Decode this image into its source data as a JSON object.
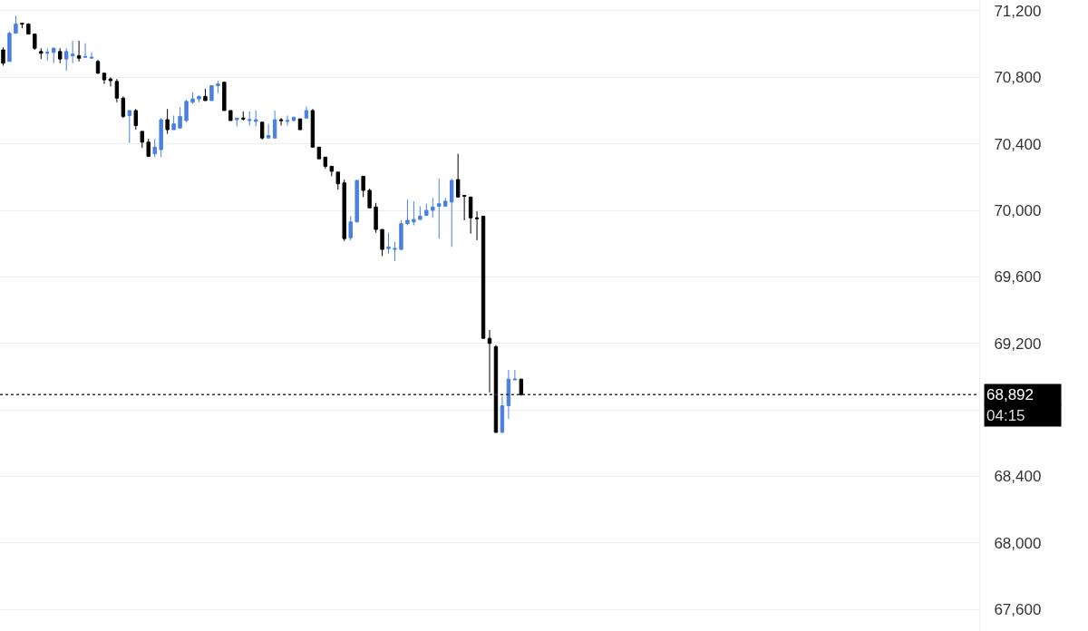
{
  "chart_data": {
    "type": "candlestick",
    "categories": [
      null,
      null,
      null,
      null,
      null,
      null,
      null,
      null,
      null,
      null,
      null,
      null,
      null,
      null,
      null,
      null,
      null,
      null,
      null,
      null,
      null,
      null,
      null,
      null,
      null,
      null,
      null,
      null,
      null,
      null,
      null,
      null,
      null,
      null,
      null,
      null,
      null,
      null,
      null,
      null,
      null,
      null,
      null,
      null,
      null,
      null,
      null,
      null,
      null,
      null,
      null,
      null,
      null,
      null,
      null,
      null,
      null,
      null,
      null,
      null,
      null,
      null,
      null,
      null,
      null,
      null,
      null,
      null,
      null,
      null,
      null,
      null,
      null,
      null,
      null,
      null,
      null,
      null,
      null,
      null,
      null,
      null,
      null,
      null,
      null,
      null,
      null,
      null,
      null,
      null,
      null,
      null,
      null,
      null,
      null,
      null,
      null,
      null,
      null,
      null,
      null,
      null,
      null,
      null,
      null,
      null,
      null,
      null,
      null,
      null,
      null,
      null,
      null,
      null,
      null,
      null,
      null,
      null,
      null,
      null,
      null,
      null,
      null,
      null,
      null,
      null,
      null,
      null,
      null,
      null,
      null,
      null,
      null,
      null,
      null,
      null,
      null,
      null,
      null,
      null,
      null,
      null,
      null,
      null,
      null,
      null,
      null,
      null,
      null,
      null,
      null,
      null,
      null,
      null,
      null
    ],
    "ohlc": [
      [
        70965,
        70980,
        70870,
        70885
      ],
      [
        70895,
        71075,
        70895,
        71065
      ],
      [
        71065,
        71170,
        71065,
        71120
      ],
      [
        71125,
        71125,
        71095,
        71120
      ],
      [
        71120,
        71125,
        71060,
        71060
      ],
      [
        71060,
        71060,
        70965,
        70975
      ],
      [
        70955,
        70975,
        70910,
        70945
      ],
      [
        70945,
        70975,
        70900,
        70950
      ],
      [
        70950,
        70980,
        70885,
        70975
      ],
      [
        70955,
        70975,
        70885,
        70910
      ],
      [
        70910,
        70975,
        70840,
        70955
      ],
      [
        70930,
        71020,
        70885,
        70940
      ],
      [
        70930,
        71020,
        70895,
        70915
      ],
      [
        70920,
        71005,
        70920,
        70925
      ],
      [
        70915,
        70950,
        70915,
        70920
      ],
      [
        70895,
        70905,
        70820,
        70825
      ],
      [
        70825,
        70825,
        70760,
        70785
      ],
      [
        70790,
        70800,
        70745,
        70780
      ],
      [
        70775,
        70790,
        70650,
        70675
      ],
      [
        70675,
        70685,
        70555,
        70565
      ],
      [
        70570,
        70600,
        70405,
        70600
      ],
      [
        70600,
        70610,
        70485,
        70510
      ],
      [
        70475,
        70475,
        70375,
        70410
      ],
      [
        70410,
        70430,
        70320,
        70325
      ],
      [
        70340,
        70430,
        70320,
        70380
      ],
      [
        70365,
        70555,
        70320,
        70545
      ],
      [
        70545,
        70610,
        70460,
        70485
      ],
      [
        70485,
        70570,
        70485,
        70520
      ],
      [
        70495,
        70620,
        70495,
        70565
      ],
      [
        70540,
        70665,
        70530,
        70655
      ],
      [
        70650,
        70710,
        70640,
        70670
      ],
      [
        70670,
        70690,
        70650,
        70685
      ],
      [
        70685,
        70730,
        70660,
        70660
      ],
      [
        70660,
        70750,
        70660,
        70750
      ],
      [
        70750,
        70780,
        70705,
        70760
      ],
      [
        70770,
        70775,
        70600,
        70600
      ],
      [
        70600,
        70600,
        70540,
        70540
      ],
      [
        70545,
        70555,
        70505,
        70555
      ],
      [
        70555,
        70595,
        70540,
        70550
      ],
      [
        70540,
        70595,
        70510,
        70545
      ],
      [
        70535,
        70600,
        70505,
        70545
      ],
      [
        70530,
        70530,
        70425,
        70435
      ],
      [
        70435,
        70520,
        70435,
        70450
      ],
      [
        70435,
        70600,
        70430,
        70545
      ],
      [
        70545,
        70555,
        70510,
        70540
      ],
      [
        70535,
        70570,
        70510,
        70540
      ],
      [
        70540,
        70560,
        70535,
        70560
      ],
      [
        70550,
        70550,
        70485,
        70485
      ],
      [
        70555,
        70625,
        70550,
        70600
      ],
      [
        70600,
        70610,
        70380,
        70380
      ],
      [
        70380,
        70380,
        70310,
        70310
      ],
      [
        70320,
        70320,
        70250,
        70265
      ],
      [
        70265,
        70265,
        70205,
        70235
      ],
      [
        70230,
        70230,
        70125,
        70160
      ],
      [
        70165,
        70185,
        69815,
        69830
      ],
      [
        69835,
        69965,
        69820,
        69930
      ],
      [
        69930,
        70180,
        69930,
        70180
      ],
      [
        70205,
        70205,
        70080,
        70120
      ],
      [
        70120,
        70130,
        70015,
        70015
      ],
      [
        70020,
        70045,
        69865,
        69885
      ],
      [
        69885,
        69885,
        69725,
        69765
      ],
      [
        69770,
        69865,
        69740,
        69780
      ],
      [
        69765,
        69810,
        69695,
        69770
      ],
      [
        69765,
        69940,
        69760,
        69920
      ],
      [
        69920,
        70065,
        69910,
        69940
      ],
      [
        69930,
        70055,
        69910,
        69945
      ],
      [
        69945,
        70025,
        69945,
        69965
      ],
      [
        69970,
        70040,
        69965,
        70000
      ],
      [
        70000,
        70075,
        69955,
        70020
      ],
      [
        70025,
        70190,
        69830,
        70040
      ],
      [
        70025,
        70075,
        70025,
        70055
      ],
      [
        70050,
        70190,
        69780,
        70180
      ],
      [
        70185,
        70340,
        70080,
        70080
      ],
      [
        70090,
        70090,
        69940,
        70085
      ],
      [
        70080,
        70080,
        69860,
        69955
      ],
      [
        69955,
        69995,
        69820,
        69950
      ],
      [
        69965,
        69965,
        69230,
        69230
      ],
      [
        69230,
        69280,
        68905,
        69200
      ],
      [
        69180,
        69190,
        68660,
        68665
      ],
      [
        68665,
        68880,
        68660,
        68825
      ],
      [
        68825,
        69040,
        68745,
        68985
      ],
      [
        68980,
        69040,
        68980,
        68985
      ],
      [
        68985,
        68985,
        68885,
        68892
      ],
      null,
      null,
      null,
      null,
      null,
      null,
      null,
      null,
      null,
      null,
      null,
      null,
      null,
      null,
      null,
      null,
      null,
      null,
      null,
      null,
      null,
      null,
      null,
      null,
      null,
      null,
      null,
      null,
      null,
      null,
      null,
      null,
      null,
      null,
      null,
      null,
      null,
      null,
      null,
      null,
      null,
      null,
      null,
      null,
      null,
      null,
      null,
      null,
      null,
      null,
      null,
      null,
      null,
      null,
      null,
      null,
      null,
      null,
      null,
      null,
      null,
      null,
      null,
      null,
      null,
      null,
      null,
      null,
      null,
      null,
      null,
      null
    ],
    "colors": [
      "#000000",
      "#4a80e0",
      "#4a80e0",
      "#000000",
      "#000000",
      "#000000",
      "#000000",
      "#4a80e0",
      "#4a80e0",
      "#000000",
      "#4a80e0",
      "#4a80e0",
      "#000000",
      "#4a80e0",
      "#4a80e0",
      "#000000",
      "#000000",
      "#000000",
      "#000000",
      "#000000",
      "#4a80e0",
      "#000000",
      "#000000",
      "#000000",
      "#4a80e0",
      "#4a80e0",
      "#000000",
      "#4a80e0",
      "#4a80e0",
      "#4a80e0",
      "#4a80e0",
      "#4a80e0",
      "#000000",
      "#4a80e0",
      "#4a80e0",
      "#000000",
      "#000000",
      "#4a80e0",
      "#000000",
      "#4a80e0",
      "#4a80e0",
      "#000000",
      "#4a80e0",
      "#4a80e0",
      "#000000",
      "#4a80e0",
      "#4a80e0",
      "#000000",
      "#4a80e0",
      "#000000",
      "#000000",
      "#000000",
      "#000000",
      "#000000",
      "#000000",
      "#4a80e0",
      "#4a80e0",
      "#000000",
      "#000000",
      "#000000",
      "#000000",
      "#4a80e0",
      "#4a80e0",
      "#4a80e0",
      "#4a80e0",
      "#4a80e0",
      "#4a80e0",
      "#4a80e0",
      "#4a80e0",
      "#4a80e0",
      "#4a80e0",
      "#4a80e0",
      "#000000",
      "#000000",
      "#000000",
      "#000000",
      "#000000",
      "#000000",
      "#000000",
      "#4a80e0",
      "#4a80e0",
      "#4a80e0",
      "#000000",
      null,
      null,
      null,
      null,
      null,
      null,
      null,
      null,
      null,
      null,
      null,
      null,
      null,
      null,
      null,
      null,
      null,
      null,
      null,
      null,
      null,
      null,
      null,
      null,
      null,
      null,
      null,
      null,
      null,
      null,
      null,
      null,
      null,
      null,
      null,
      null,
      null,
      null,
      null,
      null,
      null,
      null,
      null,
      null,
      null,
      null,
      null,
      null,
      null,
      null,
      null,
      null,
      null,
      null,
      null,
      null,
      null,
      null,
      null,
      null,
      null,
      null,
      null,
      null,
      null,
      null,
      null,
      null,
      null,
      null,
      null,
      null
    ],
    "ylim": [
      67470,
      71265
    ],
    "yticks": [
      {
        "value": 67600,
        "label": "67,600"
      },
      {
        "value": 68000,
        "label": "68,000"
      },
      {
        "value": 68400,
        "label": "68,400"
      },
      {
        "value": 68800,
        "label": null
      },
      {
        "value": 69200,
        "label": "69,200"
      },
      {
        "value": 69600,
        "label": "69,600"
      },
      {
        "value": 70000,
        "label": "70,000"
      },
      {
        "value": 70400,
        "label": "70,400"
      },
      {
        "value": 70800,
        "label": "70,800"
      },
      {
        "value": 71200,
        "label": "71,200"
      }
    ],
    "grid": "y",
    "ref_lines": [
      {
        "axis": "y",
        "value": 68892,
        "label": "68,892",
        "color": "#333333",
        "line_style": "dotted"
      }
    ],
    "annotations": [
      "04:15"
    ]
  }
}
